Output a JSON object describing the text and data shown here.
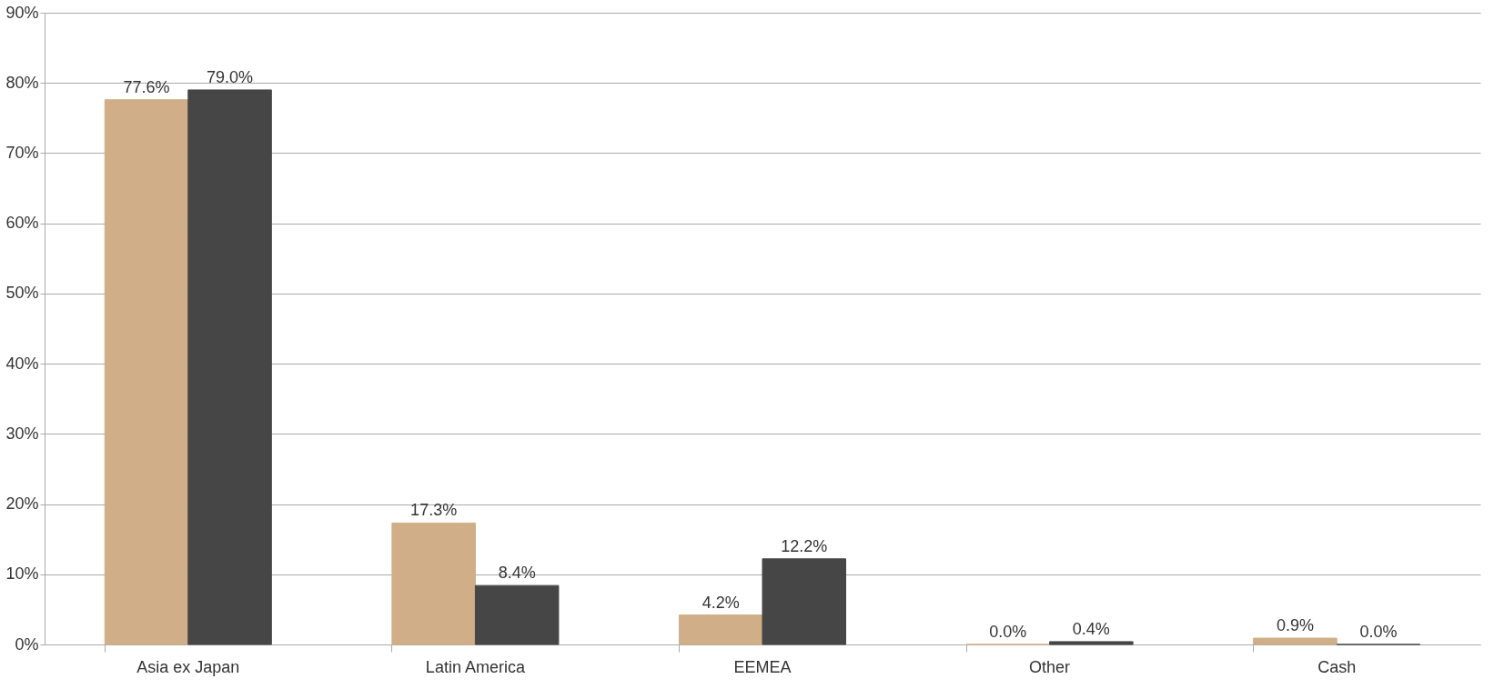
{
  "chart_data": {
    "type": "bar",
    "categories": [
      "Asia ex Japan",
      "Latin America",
      "EEMEA",
      "Other",
      "Cash"
    ],
    "series": [
      {
        "color": "#cfae88",
        "values": [
          77.6,
          17.3,
          4.2,
          0.0,
          0.9
        ],
        "value_labels": [
          "77.6%",
          "17.3%",
          "4.2%",
          "0.0%",
          "0.9%"
        ]
      },
      {
        "color": "#464646",
        "values": [
          79.0,
          8.4,
          12.2,
          0.4,
          0.0
        ],
        "value_labels": [
          "79.0%",
          "8.4%",
          "12.2%",
          "0.4%",
          "0.0%"
        ]
      }
    ],
    "ylim": [
      0,
      90
    ],
    "yticks": [
      {
        "value": 0,
        "label": "0%"
      },
      {
        "value": 10,
        "label": "10%"
      },
      {
        "value": 20,
        "label": "20%"
      },
      {
        "value": 30,
        "label": "30%"
      },
      {
        "value": 40,
        "label": "40%"
      },
      {
        "value": 50,
        "label": "50%"
      },
      {
        "value": 60,
        "label": "60%"
      },
      {
        "value": 70,
        "label": "70%"
      },
      {
        "value": 80,
        "label": "80%"
      },
      {
        "value": 90,
        "label": "90%"
      }
    ],
    "grid": "y"
  }
}
